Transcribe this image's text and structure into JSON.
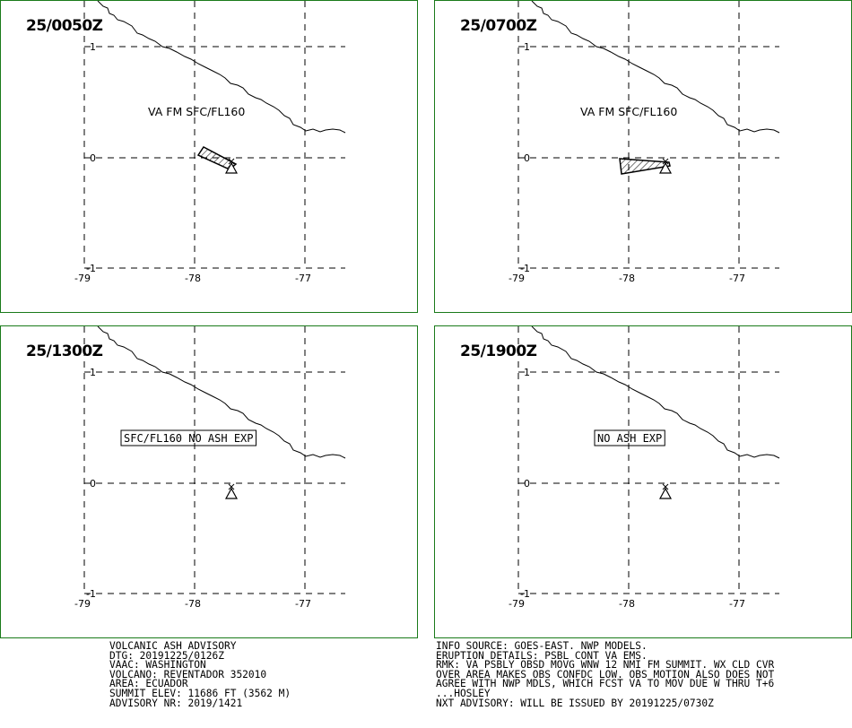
{
  "panels": [
    {
      "time": "25/0050Z",
      "label": "VA FM SFC/FL160",
      "label_boxed": false,
      "cloud": "plume"
    },
    {
      "time": "25/0700Z",
      "label": "VA FM SFC/FL160",
      "label_boxed": false,
      "cloud": "wedge"
    },
    {
      "time": "25/1300Z",
      "label": "SFC/FL160 NO ASH EXP",
      "label_boxed": true,
      "cloud": "none"
    },
    {
      "time": "25/1900Z",
      "label": "NO ASH EXP",
      "label_boxed": true,
      "cloud": "none"
    }
  ],
  "axes": {
    "lon_ticks": [
      "-79",
      "-78",
      "-77"
    ],
    "lat_ticks": [
      "1",
      "0",
      "-1"
    ]
  },
  "colors": {
    "panel_border": "#1a7a1a",
    "grid": "#000000"
  },
  "volcano_icon": "volcano-triangle-icon",
  "footer_left": [
    "VOLCANIC ASH ADVISORY",
    "DTG: 20191225/0126Z",
    "VAAC: WASHINGTON",
    "VOLCANO: REVENTADOR 352010",
    "AREA: ECUADOR",
    "SUMMIT ELEV: 11686 FT (3562 M)",
    "ADVISORY NR: 2019/1421"
  ],
  "footer_right": [
    "INFO SOURCE: GOES-EAST. NWP MODELS.",
    "ERUPTION DETAILS: PSBL CONT VA EMS.",
    "RMK: VA PSBLY OBSD MOVG WNW 12 NMI FM SUMMIT. WX CLD CVR",
    "OVER AREA MAKES OBS CONFDC LOW. OBS MOTION ALSO DOES NOT",
    "AGREE WITH NWP MDLS, WHICH FCST VA TO MOV DUE W THRU T+6",
    "...HOSLEY",
    "NXT ADVISORY: WILL BE ISSUED BY 20191225/0730Z"
  ]
}
